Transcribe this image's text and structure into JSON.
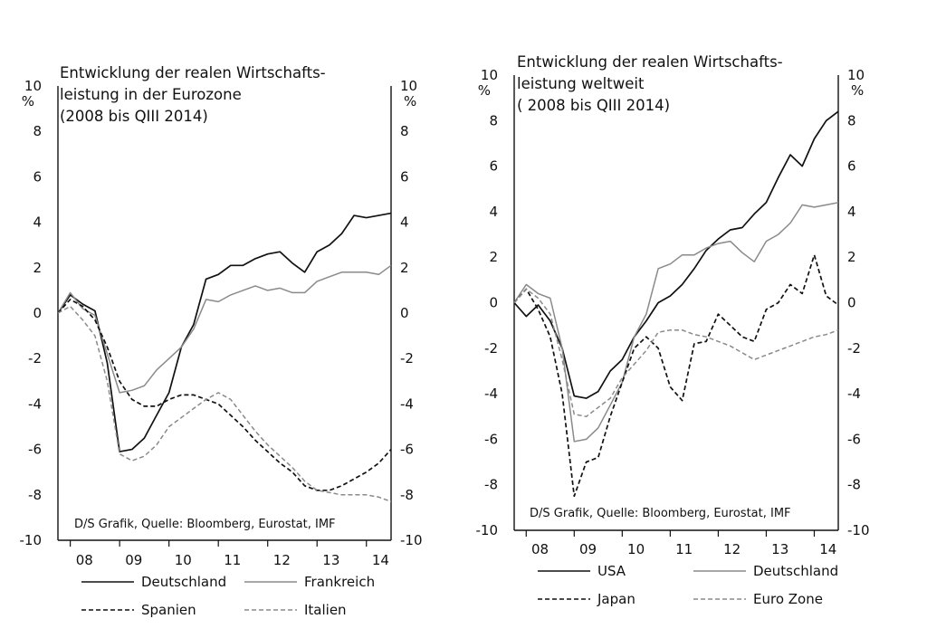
{
  "chart_data": [
    {
      "type": "line",
      "title": [
        "Entwicklung der realen Wirtschafts-",
        "leistung in der Eurozone",
        "(2008 bis QIII 2014)"
      ],
      "source": "D/S Grafik, Quelle: Bloomberg, Eurostat, IMF",
      "left_axis": {
        "unit": "%",
        "ylim": [
          -10,
          10
        ],
        "ticks": [
          -10,
          -8,
          -6,
          -4,
          -2,
          0,
          2,
          4,
          6,
          8,
          10
        ]
      },
      "right_axis": {
        "unit": "%",
        "ylim": [
          -10,
          10
        ],
        "ticks": [
          -10,
          -8,
          -6,
          -4,
          -2,
          0,
          2,
          4,
          6,
          8,
          10
        ]
      },
      "x_axis": {
        "ticks": [
          "08",
          "09",
          "10",
          "11",
          "12",
          "13",
          "14"
        ],
        "tick_positions": [
          0.5,
          1.5,
          2.5,
          3.5,
          4.5,
          5.5,
          6.5
        ],
        "xlim": [
          0,
          6.75
        ]
      },
      "legend": {
        "placement": "bottom"
      },
      "series": [
        {
          "name": "Deutschland",
          "axis": "left",
          "style": "solid",
          "color": "#111111",
          "x": [
            0,
            0.25,
            0.5,
            0.75,
            1,
            1.25,
            1.5,
            1.75,
            2,
            2.25,
            2.5,
            2.75,
            3,
            3.25,
            3.5,
            3.75,
            4,
            4.25,
            4.5,
            4.75,
            5,
            5.25,
            5.5,
            5.75,
            6,
            6.25,
            6.5,
            6.75
          ],
          "y": [
            0,
            0.8,
            0.4,
            0.1,
            -2.2,
            -6.1,
            -6.0,
            -5.5,
            -4.5,
            -3.5,
            -1.5,
            -0.5,
            1.5,
            1.7,
            2.1,
            2.1,
            2.4,
            2.6,
            2.7,
            2.2,
            1.8,
            2.7,
            3.0,
            3.5,
            4.3,
            4.2,
            4.3,
            4.4
          ]
        },
        {
          "name": "Frankreich",
          "axis": "left",
          "style": "solid",
          "color": "#8a8a8a",
          "x": [
            0,
            0.25,
            0.5,
            0.75,
            1,
            1.25,
            1.5,
            1.75,
            2,
            2.25,
            2.5,
            2.75,
            3,
            3.25,
            3.5,
            3.75,
            4,
            4.25,
            4.5,
            4.75,
            5,
            5.25,
            5.5,
            5.75,
            6,
            6.25,
            6.5,
            6.75
          ],
          "y": [
            0,
            0.9,
            0.2,
            -0.1,
            -1.8,
            -3.5,
            -3.4,
            -3.2,
            -2.5,
            -2.0,
            -1.5,
            -0.7,
            0.6,
            0.5,
            0.8,
            1.0,
            1.2,
            1.0,
            1.1,
            0.9,
            0.9,
            1.4,
            1.6,
            1.8,
            1.8,
            1.8,
            1.7,
            2.1
          ]
        },
        {
          "name": "Spanien",
          "axis": "left",
          "style": "dashed",
          "color": "#111111",
          "x": [
            0,
            0.25,
            0.5,
            0.75,
            1,
            1.25,
            1.5,
            1.75,
            2,
            2.25,
            2.5,
            2.75,
            3,
            3.25,
            3.5,
            3.75,
            4,
            4.25,
            4.5,
            4.75,
            5,
            5.25,
            5.5,
            5.75,
            6,
            6.25,
            6.5,
            6.75
          ],
          "y": [
            0,
            0.6,
            0.3,
            -0.3,
            -1.5,
            -3.0,
            -3.8,
            -4.1,
            -4.1,
            -3.8,
            -3.6,
            -3.6,
            -3.8,
            -4.0,
            -4.5,
            -5.0,
            -5.6,
            -6.1,
            -6.6,
            -7.0,
            -7.6,
            -7.8,
            -7.8,
            -7.6,
            -7.3,
            -7.0,
            -6.6,
            -6.0
          ]
        },
        {
          "name": "Italien",
          "axis": "left",
          "style": "dashed",
          "color": "#8a8a8a",
          "x": [
            0,
            0.25,
            0.5,
            0.75,
            1,
            1.25,
            1.5,
            1.75,
            2,
            2.25,
            2.5,
            2.75,
            3,
            3.25,
            3.5,
            3.75,
            4,
            4.25,
            4.5,
            4.75,
            5,
            5.25,
            5.5,
            5.75,
            6,
            6.25,
            6.5,
            6.75
          ],
          "y": [
            0,
            0.3,
            -0.3,
            -1.0,
            -3.0,
            -6.2,
            -6.5,
            -6.3,
            -5.8,
            -5.0,
            -4.6,
            -4.2,
            -3.8,
            -3.5,
            -3.8,
            -4.5,
            -5.2,
            -5.8,
            -6.3,
            -6.8,
            -7.4,
            -7.8,
            -7.9,
            -8.0,
            -8.0,
            -8.0,
            -8.1,
            -8.3
          ]
        }
      ]
    },
    {
      "type": "line",
      "title": [
        "Entwicklung der realen Wirtschafts-",
        "leistung weltweit",
        "( 2008 bis QIII 2014)"
      ],
      "source": "D/S Grafik, Quelle: Bloomberg, Eurostat, IMF",
      "left_axis": {
        "unit": "%",
        "ylim": [
          -10,
          10
        ],
        "ticks": [
          -10,
          -8,
          -6,
          -4,
          -2,
          0,
          2,
          4,
          6,
          8,
          10
        ]
      },
      "right_axis": {
        "unit": "%",
        "ylim": [
          -10,
          10
        ],
        "ticks": [
          -10,
          -8,
          -6,
          -4,
          -2,
          0,
          2,
          4,
          6,
          8,
          10
        ]
      },
      "x_axis": {
        "ticks": [
          "08",
          "09",
          "10",
          "11",
          "12",
          "13",
          "14"
        ],
        "tick_positions": [
          0.5,
          1.5,
          2.5,
          3.5,
          4.5,
          5.5,
          6.5
        ],
        "xlim": [
          0,
          6.75
        ]
      },
      "legend": {
        "placement": "bottom"
      },
      "series": [
        {
          "name": "USA",
          "axis": "left",
          "style": "solid",
          "color": "#111111",
          "x": [
            0,
            0.25,
            0.5,
            0.75,
            1,
            1.25,
            1.5,
            1.75,
            2,
            2.25,
            2.5,
            2.75,
            3,
            3.25,
            3.5,
            3.75,
            4,
            4.25,
            4.5,
            4.75,
            5,
            5.25,
            5.5,
            5.75,
            6,
            6.25,
            6.5,
            6.75
          ],
          "y": [
            0,
            -0.6,
            -0.1,
            -0.8,
            -2.0,
            -4.1,
            -4.2,
            -3.9,
            -3.0,
            -2.5,
            -1.5,
            -0.8,
            0.0,
            0.3,
            0.8,
            1.5,
            2.3,
            2.8,
            3.2,
            3.3,
            3.9,
            4.4,
            5.5,
            6.5,
            6.0,
            7.2,
            8.0,
            8.4
          ]
        },
        {
          "name": "Deutschland",
          "axis": "left",
          "style": "solid",
          "color": "#8a8a8a",
          "x": [
            0,
            0.25,
            0.5,
            0.75,
            1,
            1.25,
            1.5,
            1.75,
            2,
            2.25,
            2.5,
            2.75,
            3,
            3.25,
            3.5,
            3.75,
            4,
            4.25,
            4.5,
            4.75,
            5,
            5.25,
            5.5,
            5.75,
            6,
            6.25,
            6.5,
            6.75
          ],
          "y": [
            0,
            0.8,
            0.4,
            0.2,
            -2.0,
            -6.1,
            -6.0,
            -5.5,
            -4.5,
            -3.5,
            -1.5,
            -0.5,
            1.5,
            1.7,
            2.1,
            2.1,
            2.4,
            2.6,
            2.7,
            2.2,
            1.8,
            2.7,
            3.0,
            3.5,
            4.3,
            4.2,
            4.3,
            4.4
          ]
        },
        {
          "name": "Japan",
          "axis": "left",
          "style": "dashed",
          "color": "#111111",
          "x": [
            0,
            0.25,
            0.5,
            0.75,
            1,
            1.25,
            1.5,
            1.75,
            2,
            2.25,
            2.5,
            2.75,
            3,
            3.25,
            3.5,
            3.75,
            4,
            4.25,
            4.5,
            4.75,
            5,
            5.25,
            5.5,
            5.75,
            6,
            6.25,
            6.5,
            6.75
          ],
          "y": [
            0,
            0.6,
            -0.3,
            -1.5,
            -4.0,
            -8.5,
            -7.0,
            -6.8,
            -5.0,
            -3.5,
            -2.0,
            -1.5,
            -2.0,
            -3.7,
            -4.3,
            -1.8,
            -1.7,
            -0.5,
            -1.0,
            -1.5,
            -1.7,
            -0.3,
            0.0,
            0.8,
            0.4,
            2.1,
            0.3,
            -0.1
          ]
        },
        {
          "name": "Euro Zone",
          "axis": "left",
          "style": "dashed",
          "color": "#8a8a8a",
          "x": [
            0,
            0.25,
            0.5,
            0.75,
            1,
            1.25,
            1.5,
            1.75,
            2,
            2.25,
            2.5,
            2.75,
            3,
            3.25,
            3.5,
            3.75,
            4,
            4.25,
            4.5,
            4.75,
            5,
            5.25,
            5.5,
            5.75,
            6,
            6.25,
            6.5,
            6.75
          ],
          "y": [
            0,
            0.6,
            0.2,
            -0.5,
            -2.5,
            -4.9,
            -5.0,
            -4.6,
            -4.2,
            -3.3,
            -2.7,
            -2.1,
            -1.3,
            -1.2,
            -1.2,
            -1.4,
            -1.5,
            -1.7,
            -1.9,
            -2.2,
            -2.5,
            -2.3,
            -2.1,
            -1.9,
            -1.7,
            -1.5,
            -1.4,
            -1.2
          ]
        }
      ]
    }
  ]
}
